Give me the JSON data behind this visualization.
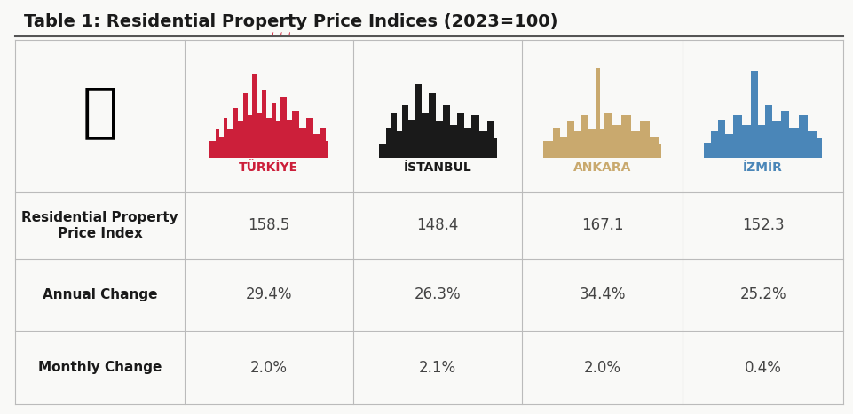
{
  "title": "Table 1: Residential Property Price Indices (2023=100)",
  "columns": [
    "",
    "TÜRKİYE",
    "İSTANBUL",
    "ANKARA",
    "İZMİR"
  ],
  "col_colors": [
    "#000000",
    "#cc1f3a",
    "#1a1a1a",
    "#c9a96e",
    "#4a86b8"
  ],
  "rows": [
    {
      "label": "Residential Property\nPrice Index",
      "values": [
        "158.5",
        "148.4",
        "167.1",
        "152.3"
      ]
    },
    {
      "label": "Annual Change",
      "values": [
        "29.4%",
        "26.3%",
        "34.4%",
        "25.2%"
      ]
    },
    {
      "label": "Monthly Change",
      "values": [
        "2.0%",
        "2.1%",
        "2.0%",
        "0.4%"
      ]
    }
  ],
  "bg_color": "#f9f9f7",
  "border_color": "#bbbbbb",
  "title_color": "#1a1a1a",
  "label_color": "#1a1a1a",
  "value_color": "#444444",
  "title_fontsize": 14,
  "label_fontsize": 11,
  "value_fontsize": 12,
  "header_fontsize": 10,
  "col_bounds": [
    0.01,
    0.21,
    0.41,
    0.61,
    0.8,
    0.99
  ],
  "row_tops": [
    0.905,
    0.535,
    0.375,
    0.2,
    0.02
  ]
}
